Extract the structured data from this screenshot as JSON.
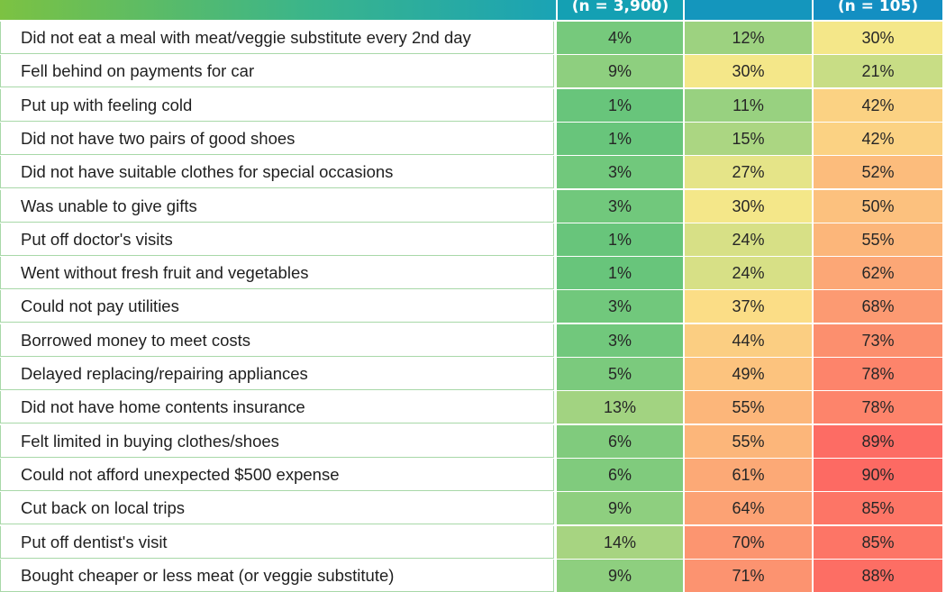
{
  "chart_data": {
    "type": "table",
    "headers": [
      "",
      "(n = 3,900)",
      "",
      "(n = 105)"
    ],
    "rows": [
      {
        "label": "Did not eat a meal with meat/veggie substitute every 2nd day",
        "values": [
          4,
          12,
          30
        ]
      },
      {
        "label": "Fell behind on payments for car",
        "values": [
          9,
          30,
          21
        ]
      },
      {
        "label": "Put up with feeling cold",
        "values": [
          1,
          11,
          42
        ]
      },
      {
        "label": "Did not have two pairs of good shoes",
        "values": [
          1,
          15,
          42
        ]
      },
      {
        "label": "Did not have suitable clothes for special occasions",
        "values": [
          3,
          27,
          52
        ]
      },
      {
        "label": "Was unable to give gifts",
        "values": [
          3,
          30,
          50
        ]
      },
      {
        "label": "Put off doctor's visits",
        "values": [
          1,
          24,
          55
        ]
      },
      {
        "label": "Went without fresh fruit and vegetables",
        "values": [
          1,
          24,
          62
        ]
      },
      {
        "label": "Could not pay utilities",
        "values": [
          3,
          37,
          68
        ]
      },
      {
        "label": "Borrowed money to meet costs",
        "values": [
          3,
          44,
          73
        ]
      },
      {
        "label": "Delayed replacing/repairing appliances",
        "values": [
          5,
          49,
          78
        ]
      },
      {
        "label": "Did not have home contents insurance",
        "values": [
          13,
          55,
          78
        ]
      },
      {
        "label": "Felt limited in buying clothes/shoes",
        "values": [
          6,
          55,
          89
        ]
      },
      {
        "label": "Could not afford unexpected $500 expense",
        "values": [
          6,
          61,
          90
        ]
      },
      {
        "label": "Cut back on local trips",
        "values": [
          9,
          64,
          85
        ]
      },
      {
        "label": "Put off dentist's visit",
        "values": [
          14,
          70,
          85
        ]
      },
      {
        "label": "Bought cheaper or less meat (or veggie substitute)",
        "values": [
          9,
          71,
          88
        ]
      }
    ],
    "value_suffix": "%",
    "color_scale": {
      "low": "#63c47a",
      "mid": "#fbe98a",
      "high": "#fd6a63"
    }
  }
}
